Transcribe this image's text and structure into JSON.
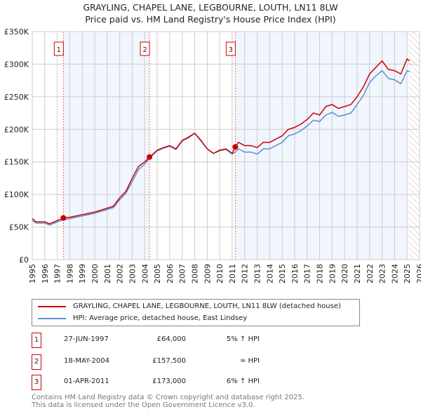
{
  "chart_data": {
    "type": "line",
    "title": "GRAYLING, CHAPEL LANE, LEGBOURNE, LOUTH, LN11 8LW",
    "subtitle": "Price paid vs. HM Land Registry's House Price Index (HPI)",
    "xlim": [
      1995,
      2026
    ],
    "ylim": [
      0,
      350000
    ],
    "x_ticks": [
      "1995",
      "1996",
      "1997",
      "1998",
      "1999",
      "2000",
      "2001",
      "2002",
      "2003",
      "2004",
      "2005",
      "2006",
      "2007",
      "2008",
      "2009",
      "2010",
      "2011",
      "2012",
      "2013",
      "2014",
      "2015",
      "2016",
      "2017",
      "2018",
      "2019",
      "2020",
      "2021",
      "2022",
      "2023",
      "2024",
      "2025",
      "2026"
    ],
    "y_ticks": [
      {
        "v": 0,
        "l": "£0"
      },
      {
        "v": 50000,
        "l": "£50K"
      },
      {
        "v": 100000,
        "l": "£100K"
      },
      {
        "v": 150000,
        "l": "£150K"
      },
      {
        "v": 200000,
        "l": "£200K"
      },
      {
        "v": 250000,
        "l": "£250K"
      },
      {
        "v": 300000,
        "l": "£300K"
      },
      {
        "v": 350000,
        "l": "£350K"
      }
    ],
    "grid": true,
    "series": [
      {
        "name": "GRAYLING, CHAPEL LANE, LEGBOURNE, LOUTH, LN11 8LW (detached house)",
        "color": "#cc0000",
        "x": [
          1995,
          1995.3,
          1996,
          1996.4,
          1997,
          1997.5,
          1998,
          1999,
          2000,
          2001,
          2001.5,
          2002,
          2002.5,
          2003,
          2003.5,
          2004,
          2004.4,
          2005,
          2005.5,
          2006,
          2006.5,
          2007,
          2007.5,
          2008,
          2008.5,
          2009,
          2009.5,
          2010,
          2010.5,
          2011,
          2011.25,
          2011.5,
          2012,
          2012.5,
          2013,
          2013.5,
          2014,
          2014.5,
          2015,
          2015.5,
          2016,
          2016.5,
          2017,
          2017.5,
          2018,
          2018.5,
          2019,
          2019.5,
          2020,
          2020.5,
          2021,
          2021.5,
          2022,
          2022.5,
          2023,
          2023.5,
          2024,
          2024.5,
          2025,
          2025.2
        ],
        "values": [
          63000,
          58000,
          58000,
          55000,
          60000,
          64000,
          65000,
          69000,
          73000,
          79000,
          82000,
          95000,
          105000,
          125000,
          143000,
          150000,
          157500,
          168000,
          172000,
          175000,
          170000,
          183000,
          188000,
          194000,
          183000,
          170000,
          163000,
          168000,
          170000,
          163000,
          173000,
          180000,
          175000,
          175000,
          172000,
          180000,
          180000,
          185000,
          190000,
          200000,
          203000,
          208000,
          215000,
          225000,
          222000,
          235000,
          238000,
          232000,
          235000,
          238000,
          250000,
          265000,
          285000,
          295000,
          305000,
          292000,
          290000,
          285000,
          308000,
          305000
        ]
      },
      {
        "name": "HPI: Average price, detached house, East Lindsey",
        "color": "#5b8fd0",
        "x": [
          1995,
          1995.3,
          1996,
          1996.4,
          1997,
          1997.5,
          1998,
          1999,
          2000,
          2001,
          2001.5,
          2002,
          2002.5,
          2003,
          2003.5,
          2004,
          2004.4,
          2005,
          2005.5,
          2006,
          2006.5,
          2007,
          2007.5,
          2008,
          2008.5,
          2009,
          2009.5,
          2010,
          2010.5,
          2011,
          2011.25,
          2011.5,
          2012,
          2012.5,
          2013,
          2013.5,
          2014,
          2014.5,
          2015,
          2015.5,
          2016,
          2016.5,
          2017,
          2017.5,
          2018,
          2018.5,
          2019,
          2019.5,
          2020,
          2020.5,
          2021,
          2021.5,
          2022,
          2022.5,
          2023,
          2023.5,
          2024,
          2024.5,
          2025,
          2025.2
        ],
        "values": [
          60000,
          56000,
          56000,
          53000,
          58000,
          61000,
          63000,
          67000,
          71000,
          77000,
          80000,
          92000,
          102000,
          120000,
          138000,
          147000,
          156000,
          167000,
          171000,
          174000,
          169000,
          182000,
          187000,
          194000,
          182000,
          170000,
          163000,
          167000,
          169000,
          162000,
          165000,
          170000,
          165000,
          165000,
          162000,
          170000,
          170000,
          175000,
          180000,
          190000,
          193000,
          198000,
          205000,
          214000,
          212000,
          222000,
          226000,
          220000,
          222000,
          225000,
          238000,
          252000,
          272000,
          282000,
          290000,
          278000,
          276000,
          270000,
          290000,
          288000
        ]
      }
    ],
    "sales": [
      {
        "label": "1",
        "date": "27-JUN-1997",
        "x": 1997.49,
        "price": "£64,000",
        "value": 64000,
        "hpi": "5% ↑ HPI"
      },
      {
        "label": "2",
        "date": "18-MAY-2004",
        "x": 2004.38,
        "price": "£157,500",
        "value": 157500,
        "hpi": "≈ HPI"
      },
      {
        "label": "3",
        "date": "01-APR-2011",
        "x": 2011.25,
        "price": "£173,000",
        "value": 173000,
        "hpi": "6% ↑ HPI"
      }
    ],
    "legend_position": "bottom"
  },
  "footer": [
    "Contains HM Land Registry data © Crown copyright and database right 2025.",
    "This data is licensed under the Open Government Licence v3.0."
  ]
}
